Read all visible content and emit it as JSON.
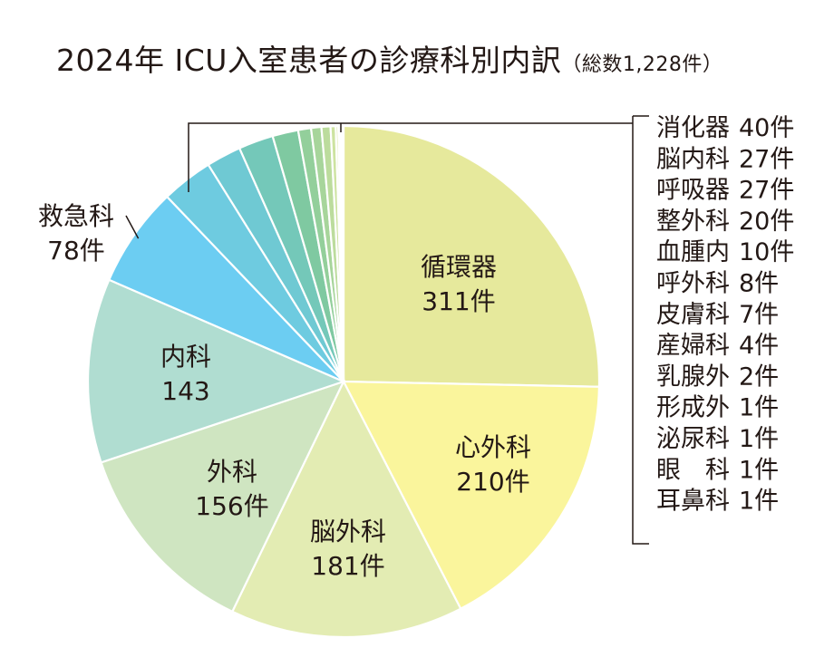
{
  "chart_data": {
    "type": "pie",
    "title": "2024年 ICU入室患者の診療科別内訳",
    "subtitle": "（総数1,228件）",
    "total": 1228,
    "slices": [
      {
        "label": "循環器",
        "value": 311,
        "display": "311件",
        "color": "#e6e99c"
      },
      {
        "label": "心外科",
        "value": 210,
        "display": "210件",
        "color": "#faf59c"
      },
      {
        "label": "脳外科",
        "value": 181,
        "display": "181件",
        "color": "#e3ecb3"
      },
      {
        "label": "外科",
        "value": 156,
        "display": "156件",
        "color": "#cfe5c1"
      },
      {
        "label": "内科",
        "value": 143,
        "display": "143",
        "color": "#b0ddd1"
      },
      {
        "label": "救急科",
        "value": 78,
        "display": "78件",
        "color": "#6ccdf2"
      },
      {
        "label": "消化器",
        "value": 40,
        "display": "40件",
        "color": "#6ecbe0"
      },
      {
        "label": "脳内科",
        "value": 27,
        "display": "27件",
        "color": "#6fc9d3"
      },
      {
        "label": "呼吸器",
        "value": 27,
        "display": "27件",
        "color": "#74c8b9"
      },
      {
        "label": "整外科",
        "value": 20,
        "display": "20件",
        "color": "#7fc9a1"
      },
      {
        "label": "血腫内",
        "value": 10,
        "display": "10件",
        "color": "#93cf9b"
      },
      {
        "label": "呼外科",
        "value": 8,
        "display": "8件",
        "color": "#a7d59b"
      },
      {
        "label": "皮膚科",
        "value": 7,
        "display": "7件",
        "color": "#bcdc9d"
      },
      {
        "label": "産婦科",
        "value": 4,
        "display": "4件",
        "color": "#cde3a0"
      },
      {
        "label": "乳腺外",
        "value": 2,
        "display": "2件",
        "color": "#dbe8a3"
      },
      {
        "label": "形成外",
        "value": 1,
        "display": "1件",
        "color": "#e5eca5"
      },
      {
        "label": "泌尿科",
        "value": 1,
        "display": "1件",
        "color": "#ecefa6"
      },
      {
        "label": "眼　科",
        "value": 1,
        "display": "1件",
        "color": "#f1f2a7"
      },
      {
        "label": "耳鼻科",
        "value": 1,
        "display": "1件",
        "color": "#f5f4a8"
      }
    ]
  }
}
